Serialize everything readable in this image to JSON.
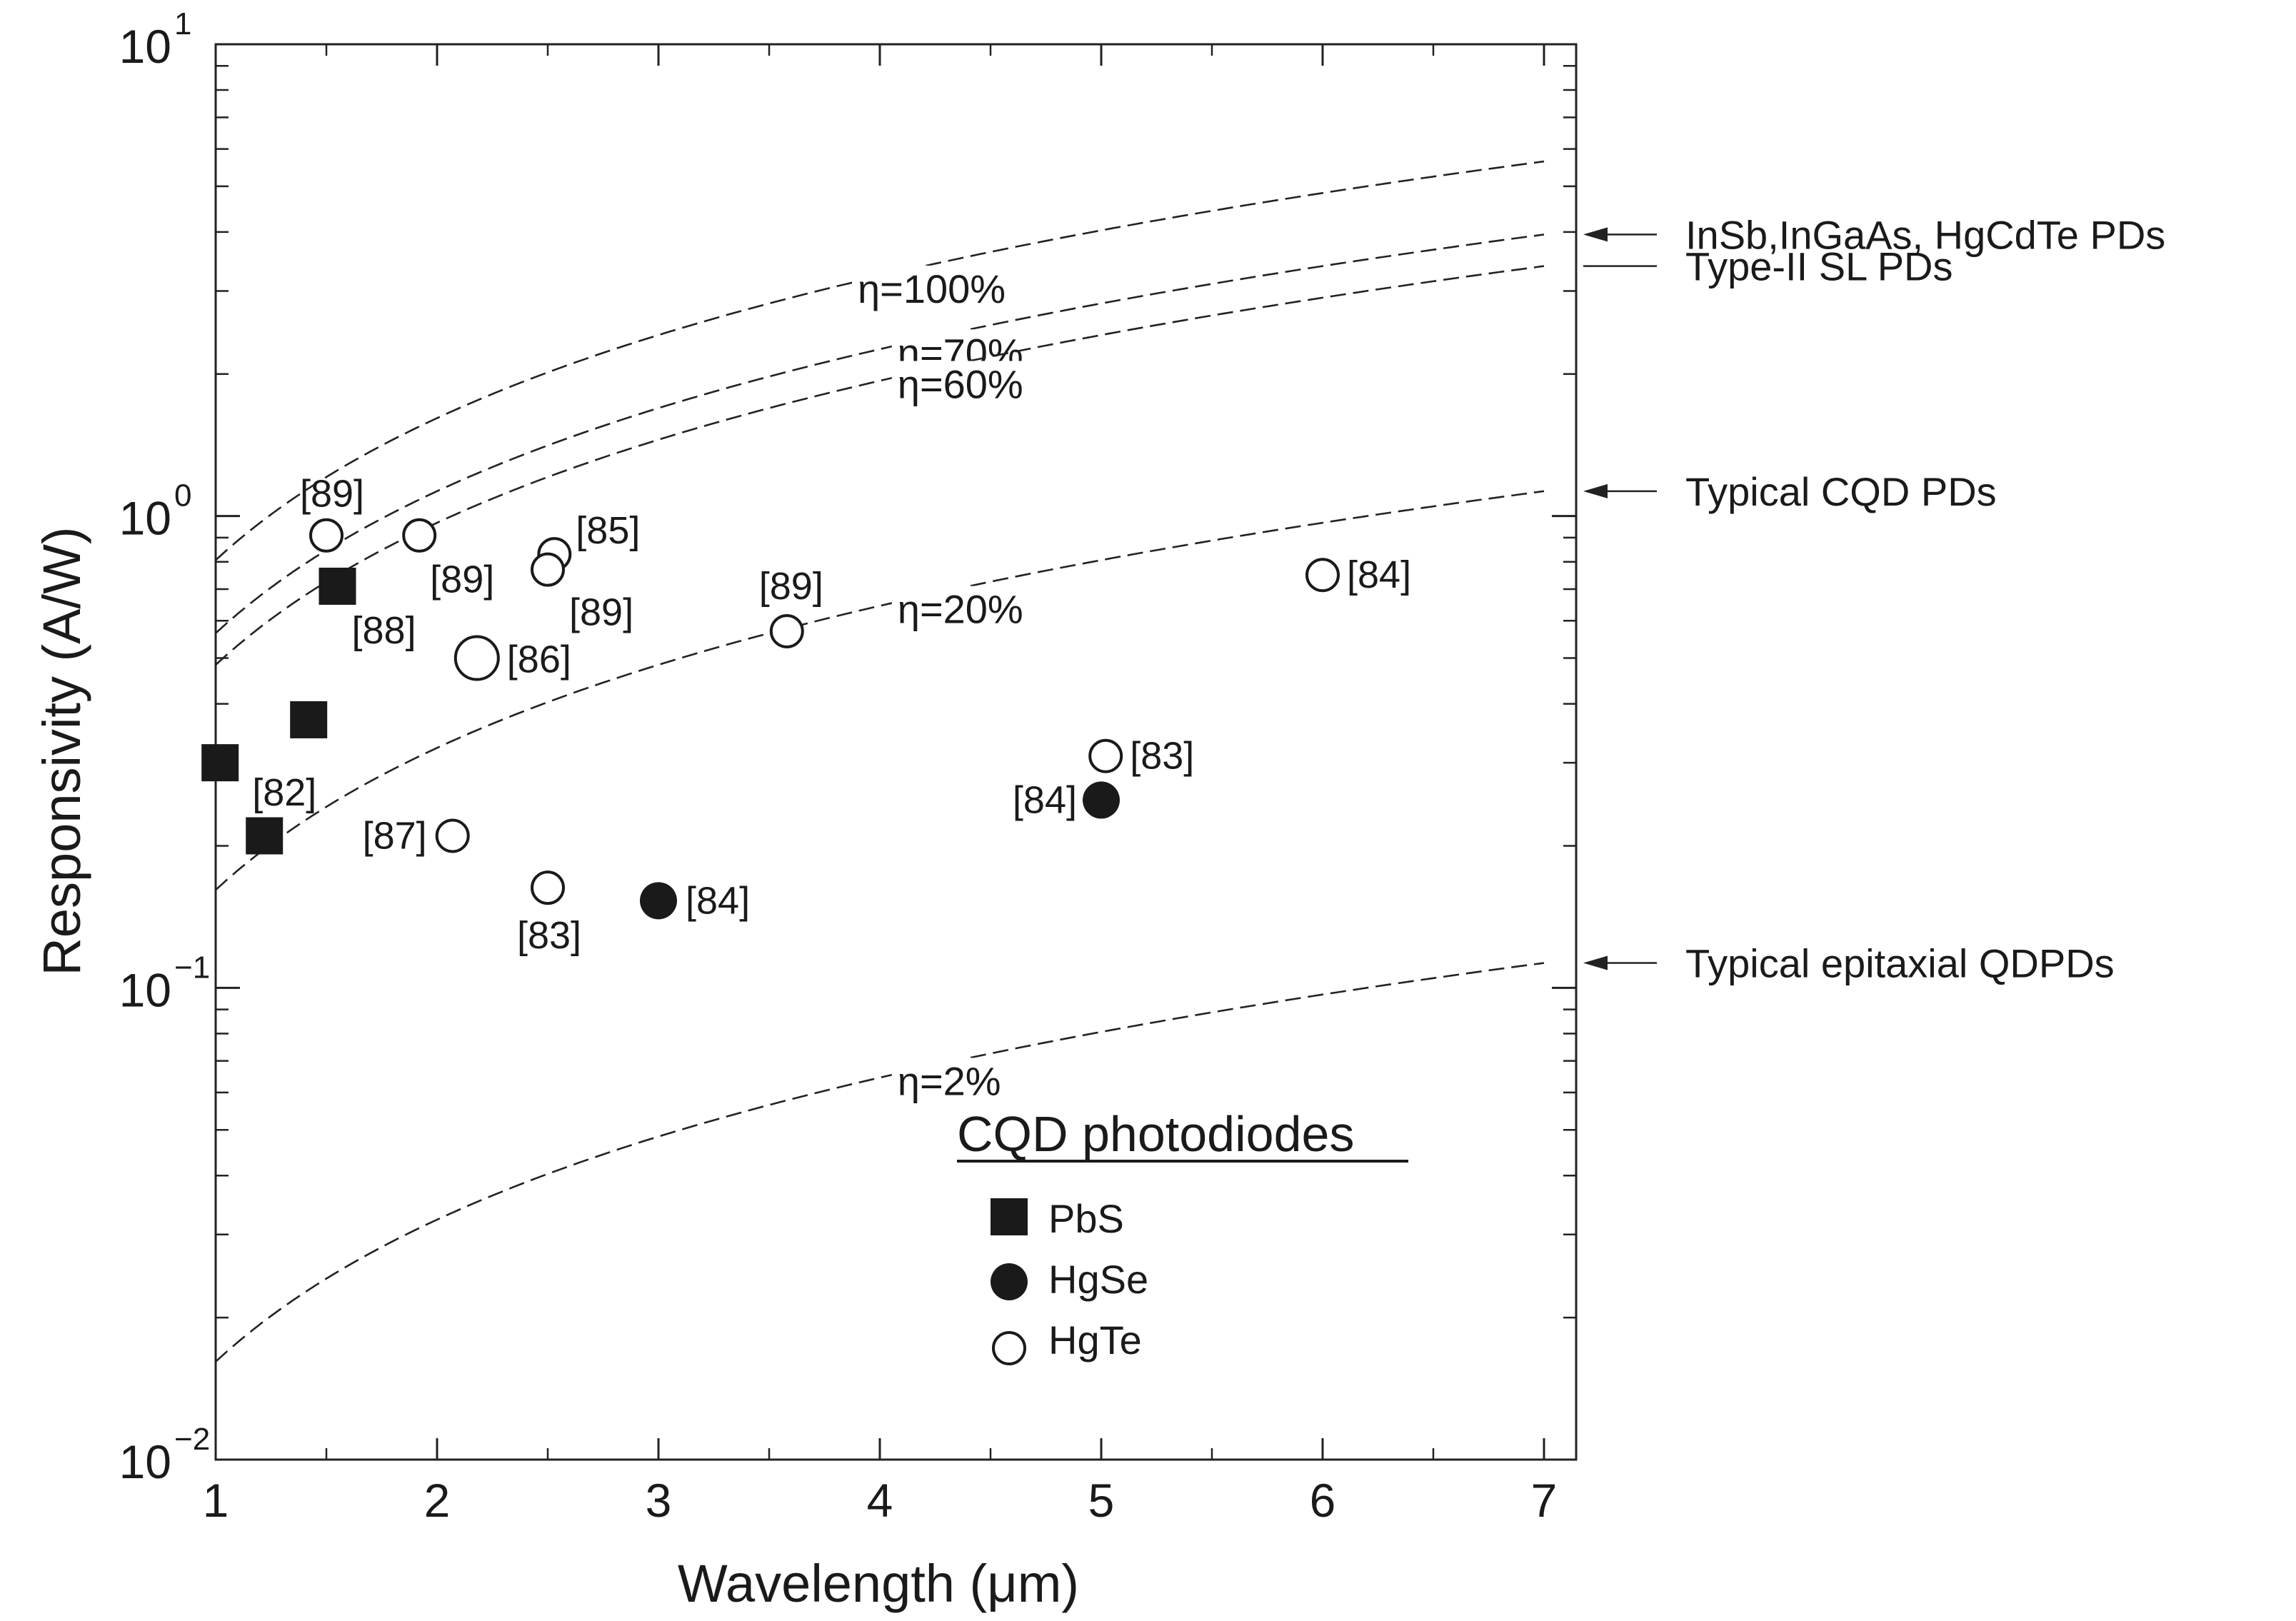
{
  "chart_data": {
    "type": "scatter",
    "xlabel": "Wavelength (μm)",
    "ylabel": "Responsivity (A/W)",
    "xlim": [
      1,
      7.1
    ],
    "ylim": [
      0.01,
      10
    ],
    "yscale": "log",
    "x_ticks": [
      "1",
      "2",
      "3",
      "4",
      "5",
      "6",
      "7"
    ],
    "y_ticks": [
      {
        "base": "10",
        "exp": "1",
        "value": 10
      },
      {
        "base": "10",
        "exp": "0",
        "value": 1
      },
      {
        "base": "10",
        "exp": "−1",
        "value": 0.1
      },
      {
        "base": "10",
        "exp": "−2",
        "value": 0.01
      }
    ],
    "efficiency_curves": [
      {
        "label": "η=100%",
        "eta": 1.0,
        "label_x": 3.9
      },
      {
        "label": "η=70%",
        "eta": 0.7,
        "label_x": 4.08
      },
      {
        "label": "η=60%",
        "eta": 0.6,
        "label_x": 4.08
      },
      {
        "label": "η=20%",
        "eta": 0.2,
        "label_x": 4.08
      },
      {
        "label": "η=2%",
        "eta": 0.02,
        "label_x": 4.08
      }
    ],
    "side_annotations": [
      {
        "text": "InSb,InGaAs, HgCdTe PDs",
        "curve": 1
      },
      {
        "text": "Type-II SL PDs",
        "curve": 2
      },
      {
        "text": "Typical CQD PDs",
        "curve": 3
      },
      {
        "text": "Typical epitaxial QDPDs",
        "curve": 4
      }
    ],
    "series": [
      {
        "name": "PbS",
        "marker": "filled-square",
        "points": [
          {
            "x": 1.02,
            "y": 0.3,
            "ref": "[82]"
          },
          {
            "x": 1.22,
            "y": 0.21,
            "ref": ""
          },
          {
            "x": 1.42,
            "y": 0.37,
            "ref": ""
          },
          {
            "x": 1.55,
            "y": 0.71,
            "ref": "[88]"
          }
        ]
      },
      {
        "name": "HgSe",
        "marker": "filled-circle",
        "points": [
          {
            "x": 3.0,
            "y": 0.153,
            "ref": "[84]"
          },
          {
            "x": 5.0,
            "y": 0.25,
            "ref": "[84]"
          }
        ]
      },
      {
        "name": "HgTe",
        "marker": "open-circle",
        "points": [
          {
            "x": 1.5,
            "y": 0.91,
            "ref": "[89]"
          },
          {
            "x": 1.92,
            "y": 0.91,
            "ref": "[89]"
          },
          {
            "x": 2.18,
            "y": 0.5,
            "ref": "[86]"
          },
          {
            "x": 2.53,
            "y": 0.83,
            "ref": "[85]"
          },
          {
            "x": 2.5,
            "y": 0.77,
            "ref": "[89]"
          },
          {
            "x": 3.58,
            "y": 0.57,
            "ref": "[89]"
          },
          {
            "x": 2.07,
            "y": 0.21,
            "ref": "[87]"
          },
          {
            "x": 2.5,
            "y": 0.163,
            "ref": "[83]"
          },
          {
            "x": 5.02,
            "y": 0.31,
            "ref": "[83]"
          },
          {
            "x": 6.0,
            "y": 0.75,
            "ref": "[84]"
          }
        ]
      }
    ],
    "legend": {
      "title": "CQD photodiodes",
      "position": "lower-center",
      "items": [
        "PbS",
        "HgSe",
        "HgTe"
      ]
    }
  }
}
